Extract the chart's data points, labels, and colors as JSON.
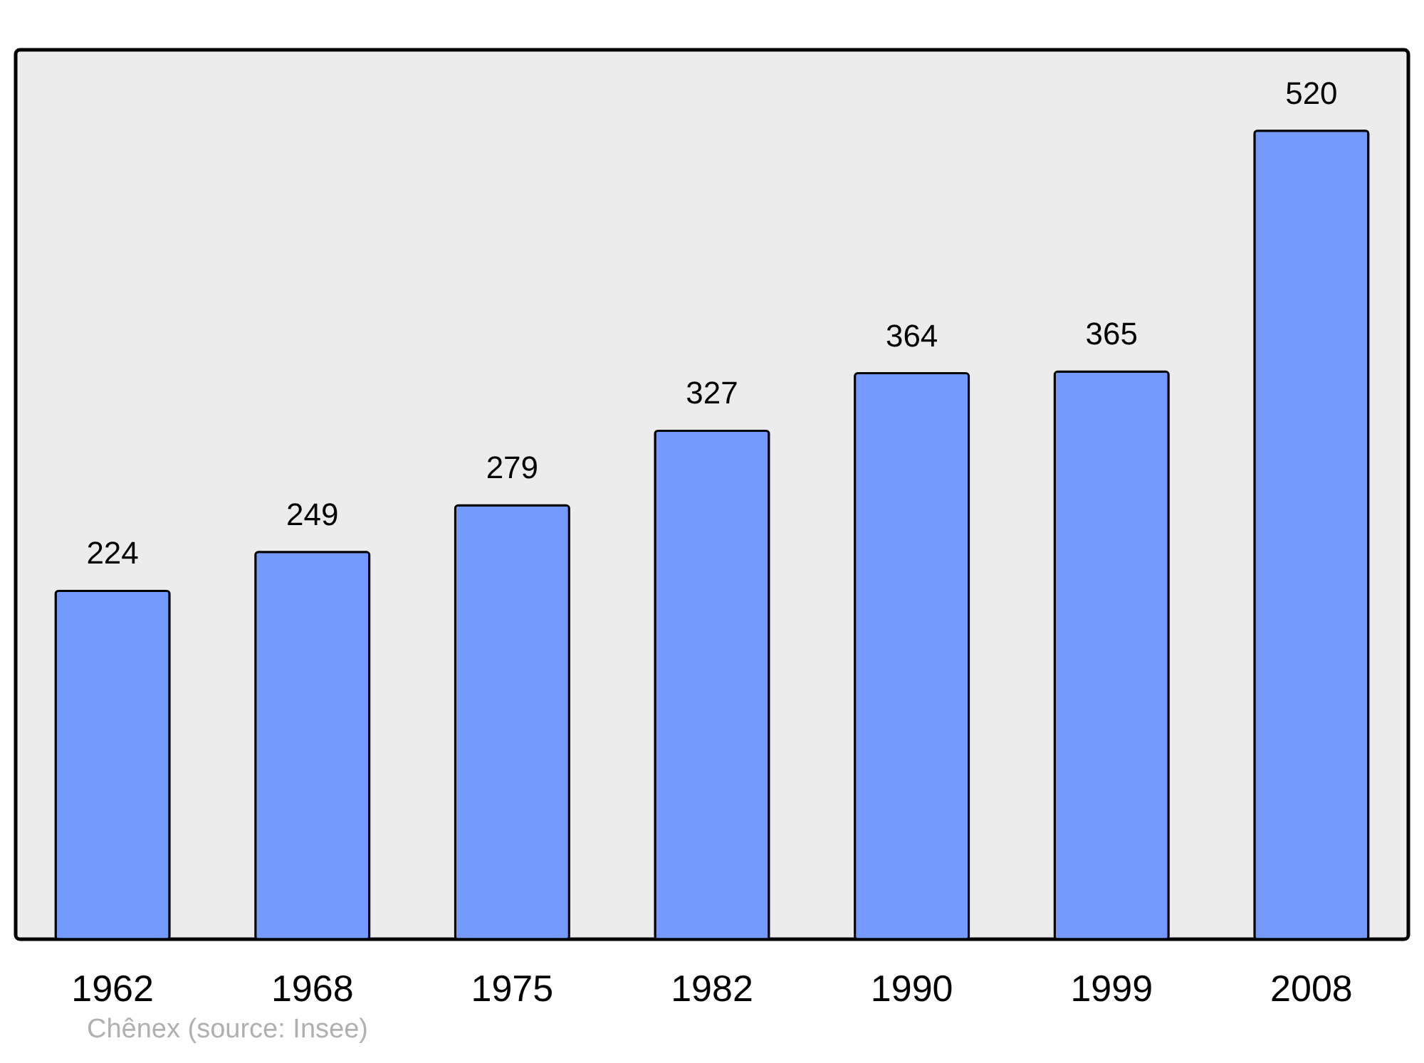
{
  "chart_data": {
    "type": "bar",
    "categories": [
      "1962",
      "1968",
      "1975",
      "1982",
      "1990",
      "1999",
      "2008"
    ],
    "values": [
      224,
      249,
      279,
      327,
      364,
      365,
      520
    ],
    "color": "#7499ff",
    "data_labels": true,
    "annotations": [
      "Chênex    (source: Insee)"
    ]
  }
}
